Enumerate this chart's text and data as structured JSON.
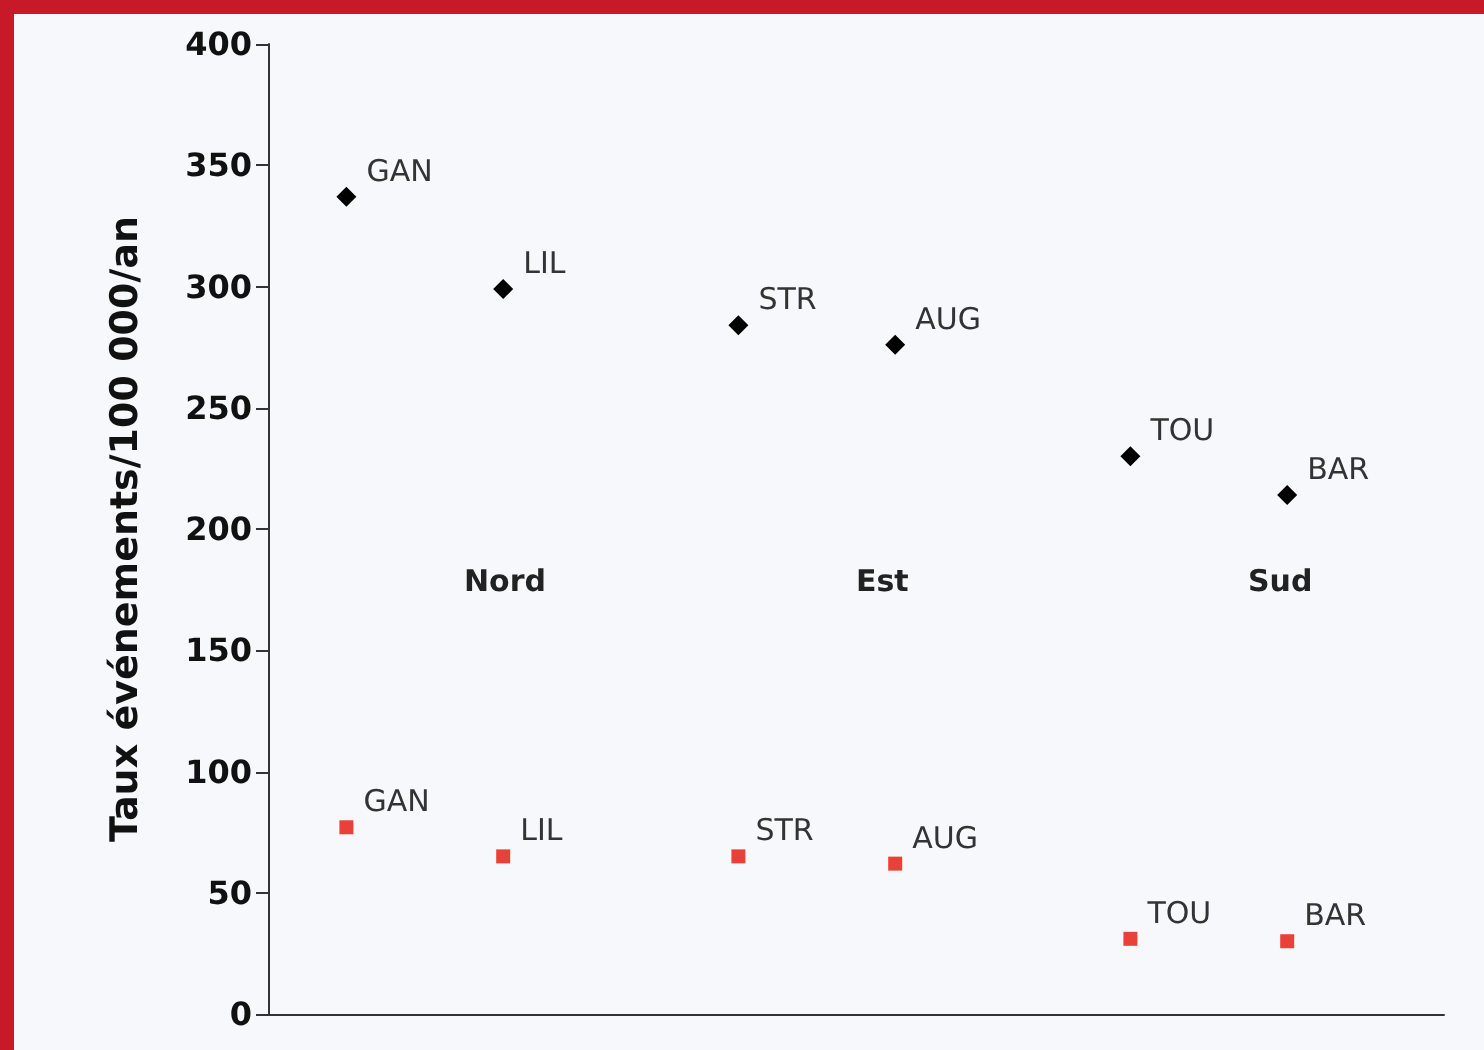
{
  "chart_data": {
    "type": "scatter",
    "ylabel": "Taux événements/100 000/an",
    "categories": [
      null,
      null,
      null,
      null,
      null,
      null,
      null,
      null,
      null,
      null,
      null,
      null,
      null,
      null,
      null,
      null
    ],
    "series": [
      {
        "color": "#000000",
        "marker": "diamond",
        "values": [
          null,
          337,
          null,
          299,
          null,
          null,
          284,
          null,
          276,
          null,
          null,
          230,
          null,
          214,
          null,
          null
        ],
        "value_labels": [
          null,
          "GAN",
          null,
          "LIL",
          null,
          null,
          "STR",
          null,
          "AUG",
          null,
          null,
          "TOU",
          null,
          "BAR",
          null,
          null
        ]
      },
      {
        "color": "#e8413a",
        "marker": "square",
        "values": [
          null,
          77,
          null,
          65,
          null,
          null,
          65,
          null,
          62,
          null,
          null,
          31,
          null,
          30,
          null,
          null
        ],
        "value_labels": [
          null,
          "GAN",
          null,
          "LIL",
          null,
          null,
          "STR",
          null,
          "AUG",
          null,
          null,
          "TOU",
          null,
          "BAR",
          null,
          null
        ]
      }
    ],
    "annotations": [
      "Nord",
      "Est",
      "Sud"
    ],
    "ylim": [
      0,
      400
    ],
    "yticks": [
      0,
      50,
      100,
      150,
      200,
      250,
      300,
      350,
      400
    ],
    "grid": false,
    "tick_labels": "y"
  }
}
